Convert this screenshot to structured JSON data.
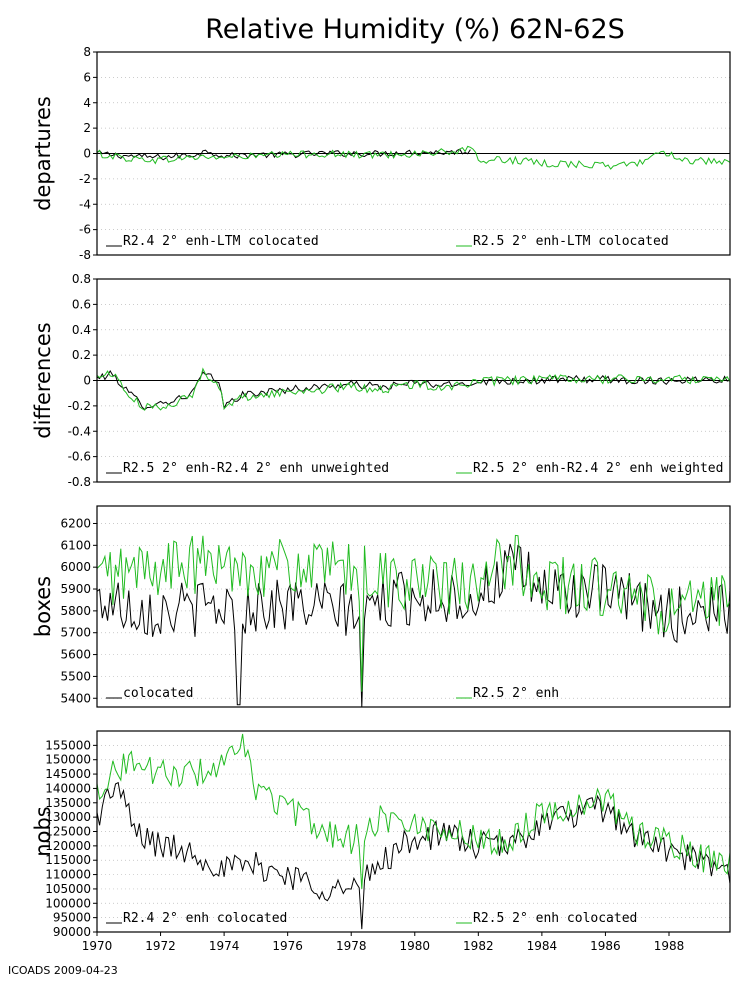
{
  "title": "Relative Humidity (%) 62N-62S",
  "footer": "ICOADS 2009-04-23",
  "colors": {
    "series_a": "#000000",
    "series_b": "#22bb22",
    "grid": "#bbbbbb"
  },
  "x_axis": {
    "range": [
      1970,
      1989.92
    ],
    "ticks": [
      1970,
      1972,
      1974,
      1976,
      1978,
      1980,
      1982,
      1984,
      1986,
      1988
    ]
  },
  "chart_data": [
    {
      "type": "line",
      "ylabel": "departures",
      "ylim": [
        -8,
        8
      ],
      "yticks": [
        8,
        6,
        4,
        2,
        0,
        -2,
        -4,
        -6,
        -8
      ],
      "zero_line": true,
      "series": [
        {
          "name": "R2.4 2° enh-LTM colocated",
          "color": "#000000",
          "x_end": 1981.75,
          "knots": [
            [
              1970,
              0.0
            ],
            [
              1971,
              -0.2
            ],
            [
              1972,
              -0.3
            ],
            [
              1973,
              -0.1
            ],
            [
              1973.5,
              0.2
            ],
            [
              1974,
              -0.2
            ],
            [
              1975,
              -0.1
            ],
            [
              1976,
              -0.1
            ],
            [
              1977,
              0.0
            ],
            [
              1978,
              0.0
            ],
            [
              1979,
              0.0
            ],
            [
              1980,
              0.1
            ],
            [
              1981,
              0.1
            ],
            [
              1981.75,
              0.2
            ]
          ],
          "amp": 0.25
        },
        {
          "name": "R2.5 2° enh-LTM colocated",
          "color": "#22bb22",
          "x_end": 1989.92,
          "knots": [
            [
              1970,
              0.0
            ],
            [
              1971,
              -0.4
            ],
            [
              1972,
              -0.5
            ],
            [
              1973,
              -0.3
            ],
            [
              1974,
              -0.3
            ],
            [
              1975,
              -0.2
            ],
            [
              1976,
              -0.1
            ],
            [
              1977,
              0.0
            ],
            [
              1978,
              -0.1
            ],
            [
              1979,
              -0.1
            ],
            [
              1980,
              0.0
            ],
            [
              1981,
              0.1
            ],
            [
              1981.8,
              0.3
            ],
            [
              1982,
              -0.5
            ],
            [
              1983,
              -0.5
            ],
            [
              1984,
              -0.8
            ],
            [
              1985,
              -0.8
            ],
            [
              1986,
              -1.0
            ],
            [
              1987,
              -0.8
            ],
            [
              1987.8,
              0.2
            ],
            [
              1988.5,
              -0.5
            ],
            [
              1989.92,
              -0.8
            ]
          ],
          "amp": 0.3
        }
      ]
    },
    {
      "type": "line",
      "ylabel": "differences",
      "ylim": [
        -0.8,
        0.8
      ],
      "yticks": [
        0.8,
        0.6,
        0.4,
        0.2,
        0,
        -0.2,
        -0.4,
        -0.6,
        -0.8
      ],
      "zero_line": true,
      "series": [
        {
          "name": "R2.5 2° enh-R2.4 2° enh unweighted",
          "color": "#000000",
          "x_end": 1989.92,
          "knots": [
            [
              1970,
              0.02
            ],
            [
              1970.5,
              0.05
            ],
            [
              1971,
              -0.1
            ],
            [
              1971.5,
              -0.2
            ],
            [
              1972,
              -0.18
            ],
            [
              1972.5,
              -0.15
            ],
            [
              1973,
              -0.1
            ],
            [
              1973.3,
              0.05
            ],
            [
              1973.8,
              0.0
            ],
            [
              1974,
              -0.2
            ],
            [
              1974.5,
              -0.12
            ],
            [
              1975,
              -0.1
            ],
            [
              1976,
              -0.07
            ],
            [
              1977,
              -0.05
            ],
            [
              1978,
              -0.03
            ],
            [
              1979,
              -0.05
            ],
            [
              1980,
              -0.02
            ],
            [
              1981,
              -0.04
            ],
            [
              1982,
              -0.01
            ],
            [
              1983,
              0.0
            ],
            [
              1984,
              0.0
            ],
            [
              1985,
              0.01
            ],
            [
              1986,
              0.01
            ],
            [
              1987,
              0.0
            ],
            [
              1988,
              0.0
            ],
            [
              1989,
              0.01
            ],
            [
              1989.92,
              0.01
            ]
          ],
          "amp": 0.03
        },
        {
          "name": "R2.5 2° enh-R2.4 2° enh weighted",
          "color": "#22bb22",
          "x_end": 1989.92,
          "knots": [
            [
              1970,
              0.03
            ],
            [
              1970.5,
              0.06
            ],
            [
              1971,
              -0.12
            ],
            [
              1971.5,
              -0.22
            ],
            [
              1972,
              -0.2
            ],
            [
              1972.5,
              -0.17
            ],
            [
              1973,
              -0.12
            ],
            [
              1973.3,
              0.07
            ],
            [
              1973.8,
              0.0
            ],
            [
              1974,
              -0.22
            ],
            [
              1974.5,
              -0.14
            ],
            [
              1975,
              -0.12
            ],
            [
              1976,
              -0.09
            ],
            [
              1977,
              -0.07
            ],
            [
              1978,
              -0.05
            ],
            [
              1979,
              -0.07
            ],
            [
              1980,
              -0.03
            ],
            [
              1981,
              -0.05
            ],
            [
              1982,
              -0.01
            ],
            [
              1983,
              0.0
            ],
            [
              1984,
              0.01
            ],
            [
              1985,
              0.01
            ],
            [
              1986,
              0.01
            ],
            [
              1987,
              0.01
            ],
            [
              1988,
              0.01
            ],
            [
              1989,
              0.01
            ],
            [
              1989.92,
              0.02
            ]
          ],
          "amp": 0.035
        }
      ]
    },
    {
      "type": "line",
      "ylabel": "boxes",
      "ylim": [
        5360,
        6280
      ],
      "yticks": [
        6200,
        6100,
        6000,
        5900,
        5800,
        5700,
        5600,
        5500,
        5400
      ],
      "zero_line": false,
      "series": [
        {
          "name": "colocated",
          "color": "#000000",
          "x_end": 1989.92,
          "knots": [
            [
              1970,
              5850
            ],
            [
              1972,
              5800
            ],
            [
              1974,
              5820
            ],
            [
              1976,
              5830
            ],
            [
              1978,
              5800
            ],
            [
              1980,
              5870
            ],
            [
              1982,
              5860
            ],
            [
              1983,
              6000
            ],
            [
              1984,
              5900
            ],
            [
              1986,
              5880
            ],
            [
              1988,
              5780
            ],
            [
              1989.92,
              5820
            ]
          ],
          "amp": 130,
          "dips": [
            [
              1974.45,
              5370
            ],
            [
              1978.35,
              5360
            ]
          ]
        },
        {
          "name": "R2.5 2° enh",
          "color": "#22bb22",
          "x_end": 1989.92,
          "knots": [
            [
              1970,
              5950
            ],
            [
              1972,
              6000
            ],
            [
              1974,
              6010
            ],
            [
              1976,
              6000
            ],
            [
              1978,
              5970
            ],
            [
              1980,
              5930
            ],
            [
              1982,
              5900
            ],
            [
              1983,
              6050
            ],
            [
              1984,
              5930
            ],
            [
              1986,
              5900
            ],
            [
              1988,
              5800
            ],
            [
              1989.92,
              5840
            ]
          ],
          "amp": 140,
          "dips": [
            [
              1978.35,
              5430
            ]
          ]
        }
      ]
    },
    {
      "type": "line",
      "ylabel": "nobs",
      "ylim": [
        90000,
        160000
      ],
      "yticks": [
        155000,
        150000,
        145000,
        140000,
        135000,
        130000,
        125000,
        120000,
        115000,
        110000,
        105000,
        100000,
        95000,
        90000
      ],
      "zero_line": false,
      "series": [
        {
          "name": "R2.4 2° enh colocated",
          "color": "#000000",
          "x_end": 1989.92,
          "knots": [
            [
              1970,
              130000
            ],
            [
              1970.6,
              142000
            ],
            [
              1971.2,
              125000
            ],
            [
              1972,
              120000
            ],
            [
              1973,
              118000
            ],
            [
              1974,
              112000
            ],
            [
              1975,
              113000
            ],
            [
              1976,
              110000
            ],
            [
              1977,
              106000
            ],
            [
              1978,
              104000
            ],
            [
              1979,
              115000
            ],
            [
              1980,
              123000
            ],
            [
              1981,
              124000
            ],
            [
              1982,
              120000
            ],
            [
              1983,
              120000
            ],
            [
              1984,
              128000
            ],
            [
              1985,
              131000
            ],
            [
              1986,
              133000
            ],
            [
              1987,
              123000
            ],
            [
              1988,
              118000
            ],
            [
              1989,
              114000
            ],
            [
              1989.92,
              110000
            ]
          ],
          "amp": 5000,
          "dips": [
            [
              1978.35,
              91000
            ]
          ]
        },
        {
          "name": "R2.5 2° enh colocated",
          "color": "#22bb22",
          "x_end": 1989.92,
          "knots": [
            [
              1970,
              140000
            ],
            [
              1971,
              150000
            ],
            [
              1972,
              145000
            ],
            [
              1973,
              145000
            ],
            [
              1974,
              148000
            ],
            [
              1974.6,
              155000
            ],
            [
              1975,
              140000
            ],
            [
              1976,
              133000
            ],
            [
              1977,
              126000
            ],
            [
              1978,
              122000
            ],
            [
              1979,
              130000
            ],
            [
              1980,
              127000
            ],
            [
              1981,
              126000
            ],
            [
              1982,
              122000
            ],
            [
              1983,
              122000
            ],
            [
              1984,
              132000
            ],
            [
              1985,
              134000
            ],
            [
              1986,
              136000
            ],
            [
              1987,
              125000
            ],
            [
              1988,
              121000
            ],
            [
              1989,
              116000
            ],
            [
              1989.92,
              113000
            ]
          ],
          "amp": 5000,
          "dips": [
            [
              1978.35,
              105000
            ]
          ]
        }
      ]
    }
  ]
}
